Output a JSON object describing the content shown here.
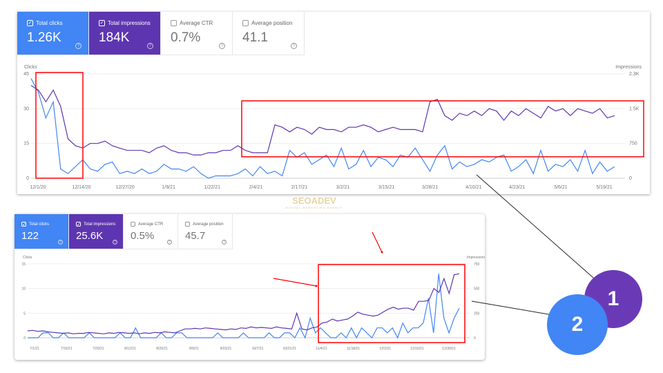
{
  "colors": {
    "clicks": "#4285f4",
    "impressions": "#5e35b1",
    "highlight": "#ff0000",
    "watermark": "#d8b86a"
  },
  "watermark": {
    "text": "SEOADEV",
    "tagline": "DIGITAL MARKETING AGENCY"
  },
  "callouts": [
    {
      "label": "1",
      "color": "#6a3ab6"
    },
    {
      "label": "2",
      "color": "#4285f4"
    }
  ],
  "panels": [
    {
      "cards": [
        {
          "label": "Total clicks",
          "value": "1.26K",
          "checked": true
        },
        {
          "label": "Total impressions",
          "value": "184K",
          "checked": true
        },
        {
          "label": "Average CTR",
          "value": "0.7%",
          "checked": false
        },
        {
          "label": "Average position",
          "value": "41.1",
          "checked": false
        }
      ]
    },
    {
      "cards": [
        {
          "label": "Total clicks",
          "value": "122",
          "checked": true
        },
        {
          "label": "Total impressions",
          "value": "25.6K",
          "checked": true
        },
        {
          "label": "Average CTR",
          "value": "0.5%",
          "checked": false
        },
        {
          "label": "Average position",
          "value": "45.7",
          "checked": false
        }
      ]
    }
  ],
  "chart_data": [
    {
      "type": "line",
      "left_axis_label": "Clicks",
      "right_axis_label": "Impressions",
      "left_ticks": [
        "0",
        "15",
        "30",
        "45"
      ],
      "right_ticks": [
        "0",
        "750",
        "1.5K",
        "2.3K"
      ],
      "ylim_clicks": [
        0,
        45
      ],
      "ylim_impressions": [
        0,
        2250
      ],
      "grid": true,
      "x_ticks": [
        "12/1/20",
        "12/14/20",
        "12/27/20",
        "1/9/21",
        "1/22/21",
        "2/4/21",
        "2/17/21",
        "3/2/21",
        "3/15/21",
        "3/28/21",
        "4/10/21",
        "4/23/21",
        "5/6/21",
        "5/19/21"
      ],
      "series": [
        {
          "name": "Clicks",
          "values": [
            43,
            37,
            26,
            33,
            4,
            2,
            5,
            8,
            4,
            3,
            6,
            7,
            2,
            3,
            2,
            4,
            2,
            3,
            6,
            4,
            4,
            3,
            5,
            2,
            0,
            1,
            1,
            1,
            2,
            4,
            1,
            5,
            2,
            3,
            1,
            12,
            9,
            11,
            6,
            8,
            10,
            5,
            13,
            4,
            6,
            12,
            5,
            9,
            8,
            5,
            10,
            9,
            13,
            8,
            3,
            10,
            14,
            4,
            7,
            5,
            6,
            8,
            7,
            9,
            10,
            3,
            5,
            8,
            2,
            12,
            3,
            6,
            5,
            8,
            3,
            12,
            2,
            7,
            3,
            5
          ]
        },
        {
          "name": "Impressions",
          "values": [
            2000,
            1900,
            1650,
            1900,
            1550,
            850,
            700,
            650,
            750,
            750,
            800,
            700,
            650,
            600,
            600,
            600,
            550,
            650,
            700,
            600,
            550,
            550,
            500,
            500,
            550,
            550,
            600,
            600,
            700,
            600,
            550,
            550,
            550,
            1150,
            1100,
            1000,
            1100,
            1050,
            950,
            1100,
            1050,
            1050,
            1000,
            1100,
            1100,
            1150,
            1100,
            1000,
            1050,
            1100,
            1050,
            1050,
            1050,
            1000,
            1650,
            1700,
            1350,
            1250,
            1400,
            1350,
            1450,
            1350,
            1500,
            1450,
            1250,
            1450,
            1350,
            1500,
            1400,
            1300,
            1550,
            1450,
            1500,
            1350,
            1500,
            1450,
            1400,
            1500,
            1300,
            1350
          ]
        }
      ],
      "annotations": [
        {
          "type": "box",
          "range": [
            "12/1/20",
            "12/14/20"
          ]
        },
        {
          "type": "box",
          "range": [
            "2/4/21",
            "6/1/21"
          ]
        }
      ]
    },
    {
      "type": "line",
      "left_axis_label": "Clicks",
      "right_axis_label": "Impressions",
      "left_ticks": [
        "0",
        "5",
        "10",
        "15"
      ],
      "right_ticks": [
        "0",
        "250",
        "500",
        "750"
      ],
      "ylim_clicks": [
        0,
        15
      ],
      "ylim_impressions": [
        0,
        750
      ],
      "grid": true,
      "x_ticks": [
        "7/1/21",
        "7/15/21",
        "7/29/21",
        "8/12/21",
        "8/26/21",
        "9/9/21",
        "9/23/21",
        "10/7/21",
        "10/21/21",
        "11/4/21",
        "11/18/21",
        "12/2/21",
        "12/16/21",
        "12/30/21"
      ],
      "series": [
        {
          "name": "Clicks",
          "values": [
            0,
            0,
            0,
            1,
            1,
            0,
            0,
            1,
            0,
            0,
            0,
            0,
            1,
            0,
            0,
            0,
            0,
            0,
            1,
            0,
            0,
            2,
            0,
            0,
            0,
            0,
            1,
            0,
            0,
            1,
            1,
            0,
            0,
            0,
            0,
            0,
            0,
            1,
            0,
            0,
            0,
            0,
            1,
            0,
            0,
            0,
            0,
            1,
            0,
            0,
            1,
            1,
            0,
            2,
            0,
            4,
            1,
            2,
            1,
            0,
            0,
            1,
            0,
            2,
            0,
            2,
            1,
            0,
            2,
            2,
            1,
            2,
            0,
            3,
            1,
            2,
            2,
            3,
            8,
            1,
            13,
            4,
            1,
            4,
            6
          ]
        },
        {
          "name": "Impressions",
          "values": [
            70,
            75,
            65,
            70,
            60,
            55,
            50,
            45,
            50,
            40,
            45,
            45,
            55,
            50,
            45,
            40,
            50,
            45,
            55,
            50,
            45,
            50,
            40,
            50,
            45,
            55,
            50,
            60,
            55,
            50,
            70,
            90,
            90,
            95,
            90,
            100,
            95,
            90,
            85,
            80,
            90,
            85,
            100,
            95,
            110,
            100,
            105,
            100,
            95,
            110,
            100,
            95,
            90,
            250,
            90,
            80,
            100,
            110,
            150,
            160,
            190,
            170,
            180,
            190,
            220,
            260,
            240,
            230,
            220,
            230,
            260,
            290,
            310,
            290,
            300,
            300,
            280,
            370,
            370,
            380,
            500,
            460,
            600,
            450,
            640,
            650
          ]
        }
      ],
      "annotations": [
        {
          "type": "box",
          "range": [
            "11/4/21",
            "1/6/22"
          ]
        },
        {
          "type": "arrow"
        },
        {
          "type": "arrow"
        }
      ]
    }
  ]
}
